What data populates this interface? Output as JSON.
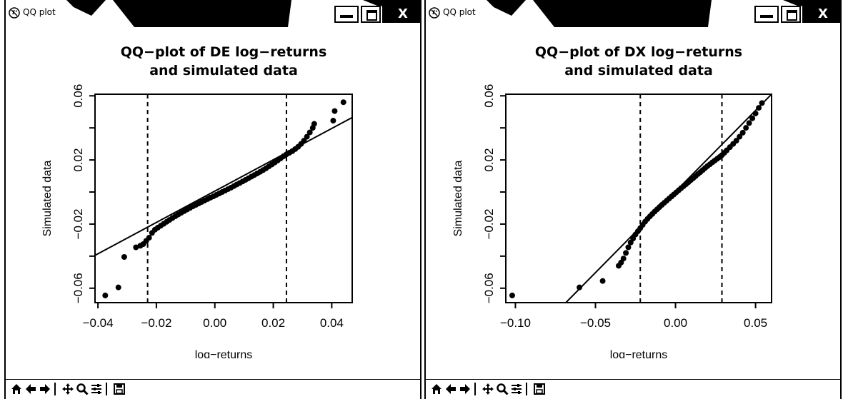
{
  "windows": [
    {
      "title": "QQ plot",
      "toolbar_icons": [
        "home-icon",
        "back-arrow-icon",
        "forward-arrow-icon",
        "pan-icon",
        "zoom-icon",
        "configure-icon",
        "save-icon"
      ],
      "chart_data": {
        "type": "scatter",
        "title_lines": [
          "QQ−plot of DE log−returns",
          "and simulated data"
        ],
        "xlabel": "log−returns",
        "ylabel": "Simulated data",
        "xlim": [
          -0.041,
          0.047
        ],
        "ylim": [
          -0.069,
          0.061
        ],
        "xticks": [
          -0.04,
          -0.02,
          0.0,
          0.02,
          0.04
        ],
        "xtick_labels": [
          "−0.04",
          "−0.02",
          "0.00",
          "0.02",
          "0.04"
        ],
        "yticks": [
          -0.06,
          -0.02,
          0.02,
          0.06
        ],
        "ytick_labels": [
          "−0.06",
          "−0.02",
          "0.02",
          "0.06"
        ],
        "vlines": [
          -0.023,
          0.0245
        ],
        "ref_line": {
          "x1": -0.041,
          "y1": -0.0395,
          "x2": 0.047,
          "y2": 0.0465
        },
        "points": {
          "x": [
            -0.0375,
            -0.033,
            -0.031,
            -0.027,
            -0.0255,
            -0.0245,
            -0.0235,
            -0.0225,
            -0.0215,
            -0.0205,
            -0.0195,
            -0.0185,
            -0.0175,
            -0.0165,
            -0.0155,
            -0.0145,
            -0.0135,
            -0.0125,
            -0.0115,
            -0.0105,
            -0.0095,
            -0.0085,
            -0.0075,
            -0.0065,
            -0.0055,
            -0.0045,
            -0.0035,
            -0.0025,
            -0.0015,
            -0.0005,
            0.0005,
            0.0015,
            0.0025,
            0.0035,
            0.0045,
            0.0055,
            0.0065,
            0.0075,
            0.0085,
            0.0095,
            0.0105,
            0.0115,
            0.0125,
            0.0135,
            0.0145,
            0.0155,
            0.0165,
            0.0175,
            0.0185,
            0.0195,
            0.0205,
            0.0215,
            0.0225,
            0.0235,
            0.0245,
            0.0255,
            0.0265,
            0.0275,
            0.0285,
            0.0295,
            0.0305,
            0.0315,
            0.0325,
            0.0335,
            0.034,
            0.0405,
            0.041,
            0.044
          ],
          "y": [
            -0.0645,
            -0.0595,
            -0.0405,
            -0.0345,
            -0.0335,
            -0.0325,
            -0.0305,
            -0.0285,
            -0.0255,
            -0.0235,
            -0.0222,
            -0.021,
            -0.0198,
            -0.0186,
            -0.0174,
            -0.0162,
            -0.0151,
            -0.014,
            -0.0129,
            -0.0119,
            -0.0109,
            -0.0099,
            -0.0089,
            -0.008,
            -0.0071,
            -0.0062,
            -0.0053,
            -0.0044,
            -0.0035,
            -0.0027,
            -0.0018,
            -0.0009,
            0.0,
            0.0009,
            0.0018,
            0.0027,
            0.0037,
            0.0047,
            0.0056,
            0.0066,
            0.0076,
            0.0086,
            0.0096,
            0.0106,
            0.0116,
            0.0126,
            0.0137,
            0.0148,
            0.016,
            0.0172,
            0.0184,
            0.0197,
            0.021,
            0.0223,
            0.0235,
            0.0245,
            0.0255,
            0.0268,
            0.0282,
            0.03,
            0.032,
            0.0345,
            0.0372,
            0.04,
            0.0425,
            0.0445,
            0.0505,
            0.056
          ]
        },
        "grid": false
      }
    },
    {
      "title": "QQ plot",
      "toolbar_icons": [
        "home-icon",
        "back-arrow-icon",
        "forward-arrow-icon",
        "pan-icon",
        "zoom-icon",
        "configure-icon",
        "save-icon"
      ],
      "chart_data": {
        "type": "scatter",
        "title_lines": [
          "QQ−plot of DX log−returns",
          "and simulated data"
        ],
        "xlabel": "log−returns",
        "ylabel": "Simulated data",
        "xlim": [
          -0.106,
          0.06
        ],
        "ylim": [
          -0.069,
          0.061
        ],
        "xticks": [
          -0.1,
          -0.05,
          0.0,
          0.05
        ],
        "xtick_labels": [
          "−0.10",
          "−0.05",
          "0.00",
          "0.05"
        ],
        "yticks": [
          -0.06,
          -0.02,
          0.02,
          0.06
        ],
        "ytick_labels": [
          "−0.06",
          "−0.02",
          "0.02",
          "0.06"
        ],
        "vlines": [
          -0.022,
          0.029
        ],
        "ref_line": {
          "x1": -0.0685,
          "y1": -0.069,
          "x2": 0.06,
          "y2": 0.061
        },
        "points": {
          "x": [
            -0.102,
            -0.06,
            -0.0455,
            -0.0355,
            -0.034,
            -0.0325,
            -0.031,
            -0.0295,
            -0.028,
            -0.0265,
            -0.025,
            -0.0235,
            -0.022,
            -0.0205,
            -0.019,
            -0.0175,
            -0.016,
            -0.0145,
            -0.013,
            -0.0115,
            -0.01,
            -0.0085,
            -0.007,
            -0.0055,
            -0.004,
            -0.0025,
            -0.001,
            0.0005,
            0.002,
            0.0035,
            0.005,
            0.0065,
            0.008,
            0.0095,
            0.011,
            0.0125,
            0.014,
            0.0155,
            0.017,
            0.0185,
            0.02,
            0.0215,
            0.023,
            0.0245,
            0.026,
            0.0275,
            0.029,
            0.0305,
            0.032,
            0.034,
            0.036,
            0.038,
            0.04,
            0.042,
            0.044,
            0.046,
            0.048,
            0.05,
            0.052,
            0.054
          ],
          "y": [
            -0.0645,
            -0.0595,
            -0.0555,
            -0.046,
            -0.044,
            -0.0415,
            -0.038,
            -0.0345,
            -0.0315,
            -0.029,
            -0.0265,
            -0.0245,
            -0.0225,
            -0.0205,
            -0.0185,
            -0.0168,
            -0.0152,
            -0.0137,
            -0.0122,
            -0.0108,
            -0.0094,
            -0.008,
            -0.0067,
            -0.0054,
            -0.0041,
            -0.0028,
            -0.0015,
            -0.0002,
            0.0011,
            0.0024,
            0.0036,
            0.0048,
            0.0061,
            0.0074,
            0.0086,
            0.0099,
            0.0112,
            0.0124,
            0.0137,
            0.015,
            0.0162,
            0.0173,
            0.0185,
            0.0196,
            0.0207,
            0.0218,
            0.023,
            0.0245,
            0.026,
            0.028,
            0.03,
            0.032,
            0.0345,
            0.037,
            0.04,
            0.043,
            0.046,
            0.049,
            0.0525,
            0.0555
          ]
        },
        "grid": false
      }
    }
  ]
}
